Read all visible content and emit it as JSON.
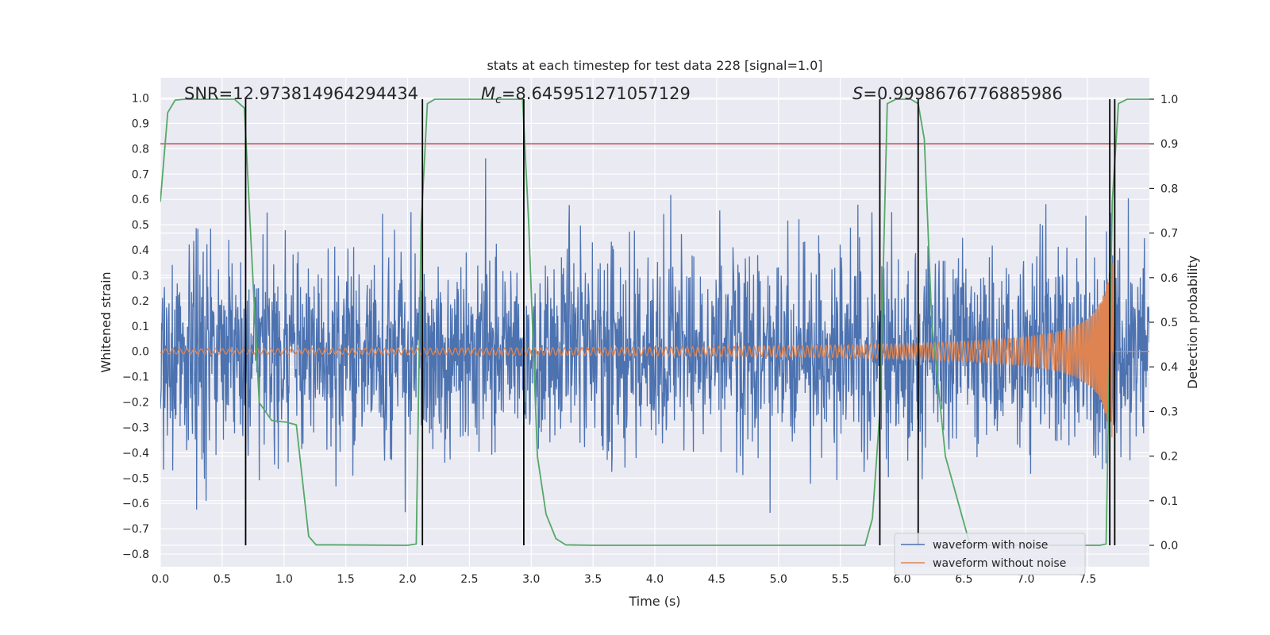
{
  "chart_data": {
    "type": "line",
    "title": "stats at each timestep for test data 228 [signal=1.0]",
    "xlabel": "Time (s)",
    "ylabel": "Whitened strain",
    "y2label": "Detection probability",
    "xlim": [
      0,
      8
    ],
    "ylim": [
      -0.85,
      1.08
    ],
    "y2lim": [
      -0.048,
      1.048
    ],
    "xticks": [
      "0.0",
      "0.5",
      "1.0",
      "1.5",
      "2.0",
      "2.5",
      "3.0",
      "3.5",
      "4.0",
      "4.5",
      "5.0",
      "5.5",
      "6.0",
      "6.5",
      "7.0",
      "7.5"
    ],
    "yticks": [
      "1.0",
      "0.9",
      "0.8",
      "0.7",
      "0.6",
      "0.5",
      "0.4",
      "0.3",
      "0.2",
      "0.1",
      "0.0",
      "−0.1",
      "−0.2",
      "−0.3",
      "−0.4",
      "−0.5",
      "−0.6",
      "−0.7",
      "−0.8"
    ],
    "y2ticks": [
      "1.0",
      "0.9",
      "0.8",
      "0.7",
      "0.6",
      "0.5",
      "0.4",
      "0.3",
      "0.2",
      "0.1",
      "0.0"
    ],
    "grid": true,
    "legend_position": "lower-right",
    "annotations": {
      "snr": "SNR=12.973814964294434",
      "mc_symbol": "M",
      "mc_sub": "c",
      "mc_value": "=8.645951271057129",
      "s_symbol": "S",
      "s_value": "=0.9998676776885986"
    },
    "threshold_line": {
      "y2": 0.9,
      "color": "#c44e52"
    },
    "detection_markers_x": [
      0.69,
      2.12,
      2.94,
      5.82,
      6.13,
      7.68,
      7.72
    ],
    "series": [
      {
        "name": "waveform with noise",
        "color": "#4c72b0",
        "kind": "noise",
        "amplitude_std": 0.2,
        "samples": 2400
      },
      {
        "name": "waveform without noise",
        "color": "#dd8452",
        "kind": "chirp",
        "merger_time": 7.7,
        "amplitude_start": 0.01,
        "amplitude_peak": 0.35
      },
      {
        "name": "detection probability",
        "color": "#55a868",
        "axis": "y2",
        "x": [
          0.0,
          0.06,
          0.12,
          0.2,
          0.3,
          0.6,
          0.68,
          0.73,
          0.8,
          0.85,
          0.9,
          0.95,
          1.02,
          1.1,
          1.2,
          1.26,
          1.4,
          2.0,
          2.07,
          2.11,
          2.16,
          2.22,
          2.8,
          2.93,
          2.98,
          3.05,
          3.12,
          3.2,
          3.28,
          3.5,
          4.5,
          5.7,
          5.76,
          5.82,
          5.88,
          5.95,
          6.0,
          6.07,
          6.13,
          6.18,
          6.24,
          6.35,
          6.5,
          6.55,
          7.6,
          7.65,
          7.7,
          7.75,
          7.82,
          8.0
        ],
        "y": [
          0.77,
          0.97,
          0.998,
          1.0,
          1.0,
          1.0,
          0.98,
          0.7,
          0.32,
          0.3,
          0.28,
          0.278,
          0.276,
          0.27,
          0.02,
          0.001,
          0.001,
          0.0,
          0.003,
          0.72,
          0.99,
          1.0,
          1.0,
          1.0,
          0.72,
          0.2,
          0.07,
          0.015,
          0.001,
          0.0,
          0.0,
          0.0,
          0.06,
          0.3,
          0.99,
          1.0,
          1.0,
          1.0,
          0.99,
          0.91,
          0.5,
          0.2,
          0.05,
          0.0,
          0.0,
          0.003,
          0.77,
          0.99,
          1.0,
          1.0
        ]
      }
    ]
  }
}
